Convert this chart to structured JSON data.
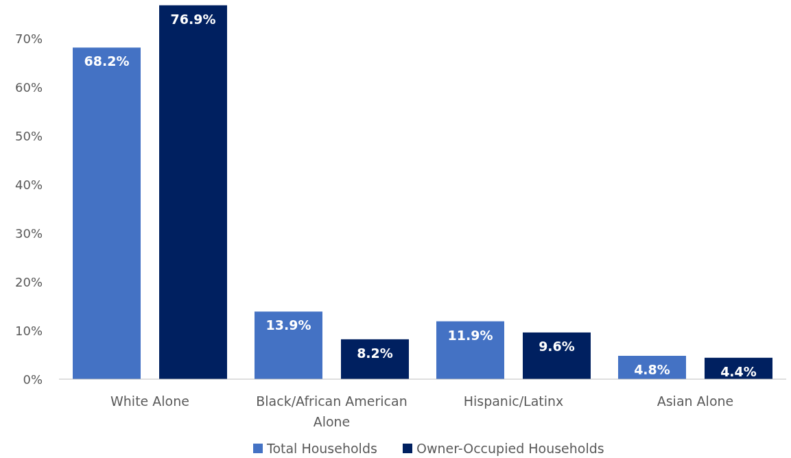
{
  "chart_data": {
    "type": "bar",
    "categories": [
      "White Alone",
      "Black/African American Alone",
      "Hispanic/Latinx",
      "Asian Alone"
    ],
    "series": [
      {
        "name": "Total Households",
        "color": "#4472c4",
        "values": [
          68.2,
          13.9,
          11.9,
          4.8
        ]
      },
      {
        "name": "Owner-Occupied Households",
        "color": "#002060",
        "values": [
          76.9,
          8.2,
          9.6,
          4.4
        ]
      }
    ],
    "value_labels": [
      [
        "68.2%",
        "13.9%",
        "11.9%",
        "4.8%"
      ],
      [
        "76.9%",
        "8.2%",
        "9.6%",
        "4.4%"
      ]
    ],
    "ylim": [
      0,
      77
    ],
    "yticks": [
      {
        "value": 0,
        "label": "0%"
      },
      {
        "value": 10,
        "label": "10%"
      },
      {
        "value": 20,
        "label": "20%"
      },
      {
        "value": 30,
        "label": "30%"
      },
      {
        "value": 40,
        "label": "40%"
      },
      {
        "value": 50,
        "label": "50%"
      },
      {
        "value": 60,
        "label": "60%"
      },
      {
        "value": 70,
        "label": "70%"
      }
    ],
    "grid": false,
    "legend": "bottom"
  }
}
